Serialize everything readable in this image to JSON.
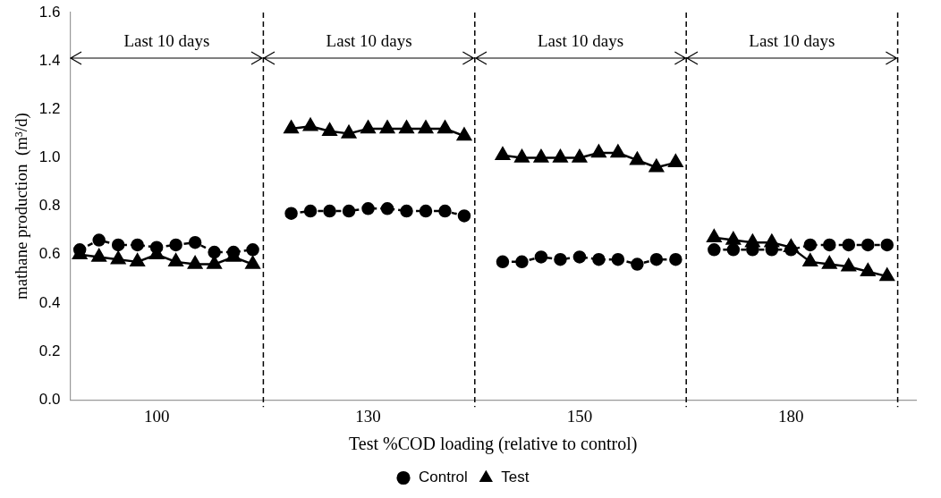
{
  "chart_data": {
    "type": "line",
    "xlabel": "Test %COD loading (relative to control)",
    "ylabel": "mathane production  (m³/d)",
    "categories": [
      null,
      null,
      null,
      null,
      "100",
      null,
      null,
      null,
      null,
      null,
      null,
      null,
      null,
      null,
      null,
      "130",
      null,
      null,
      null,
      null,
      null,
      null,
      null,
      null,
      null,
      null,
      "150",
      null,
      null,
      null,
      null,
      null,
      null,
      null,
      null,
      null,
      null,
      "180",
      null,
      null,
      null,
      null,
      null,
      null
    ],
    "series": [
      {
        "name": "Control",
        "color": "#000000",
        "marker": "circle",
        "line_style": "dashed",
        "values": [
          0.62,
          0.66,
          0.64,
          0.64,
          0.63,
          0.64,
          0.65,
          0.61,
          0.61,
          0.62,
          null,
          0.77,
          0.78,
          0.78,
          0.78,
          0.79,
          0.79,
          0.78,
          0.78,
          0.78,
          0.76,
          null,
          0.57,
          0.57,
          0.59,
          0.58,
          0.59,
          0.58,
          0.58,
          0.56,
          0.58,
          0.58,
          null,
          0.62,
          0.62,
          0.62,
          0.62,
          0.62,
          0.64,
          0.64,
          0.64,
          0.64,
          0.64,
          null
        ]
      },
      {
        "name": "Test",
        "color": "#000000",
        "marker": "triangle",
        "line_style": "solid",
        "values": [
          0.6,
          0.59,
          0.58,
          0.57,
          0.6,
          0.57,
          0.56,
          0.56,
          0.59,
          0.56,
          null,
          1.12,
          1.13,
          1.11,
          1.1,
          1.12,
          1.12,
          1.12,
          1.12,
          1.12,
          1.09,
          null,
          1.01,
          1.0,
          1.0,
          1.0,
          1.0,
          1.02,
          1.02,
          0.99,
          0.96,
          0.98,
          null,
          0.67,
          0.66,
          0.65,
          0.65,
          0.63,
          0.57,
          0.56,
          0.55,
          0.53,
          0.51,
          null
        ]
      }
    ],
    "ylim": [
      0,
      1.6
    ],
    "yticks": [
      {
        "value": 0,
        "label": "0.0"
      },
      {
        "value": 0.2,
        "label": "0.2"
      },
      {
        "value": 0.4,
        "label": "0.4"
      },
      {
        "value": 0.6,
        "label": "0.6"
      },
      {
        "value": 0.8,
        "label": "0.8"
      },
      {
        "value": 1.0,
        "label": "1.0"
      },
      {
        "value": 1.2,
        "label": "1.2"
      },
      {
        "value": 1.4,
        "label": "1.4"
      },
      {
        "value": 1.6,
        "label": "1.6"
      }
    ],
    "annotations": [
      "Last 10 days",
      "Last 10 days",
      "Last 10 days",
      "Last 10 days"
    ],
    "grid": false,
    "legend": "bottom"
  }
}
